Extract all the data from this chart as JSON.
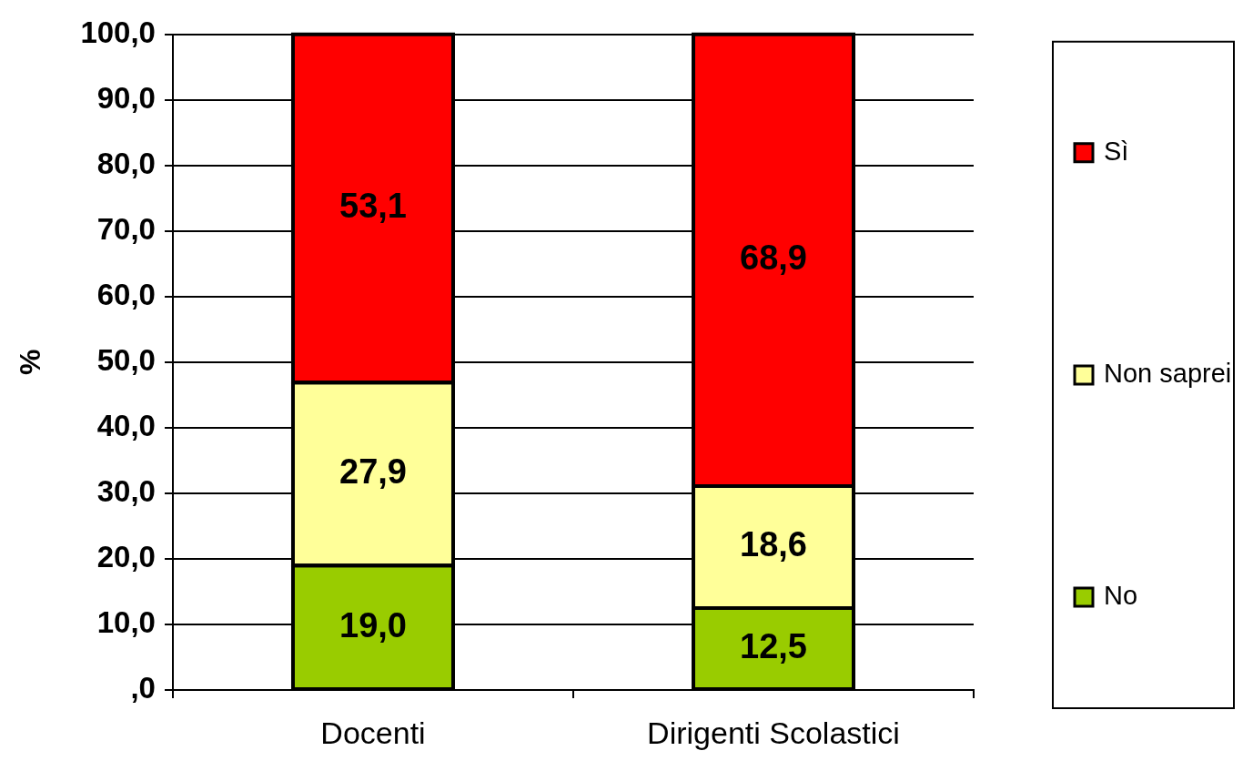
{
  "chart_data": {
    "type": "bar",
    "ylabel": "%",
    "categories": [
      "Docenti",
      "Dirigenti Scolastici"
    ],
    "series": [
      {
        "name": "No",
        "color": "#99cc00",
        "values": [
          19.0,
          12.5
        ],
        "value_labels": [
          "19,0",
          "12,5"
        ]
      },
      {
        "name": "Non saprei",
        "color": "#ffff99",
        "values": [
          27.9,
          18.6
        ],
        "value_labels": [
          "27,9",
          "18,6"
        ]
      },
      {
        "name": "Sì",
        "color": "#ff0000",
        "values": [
          53.1,
          68.9
        ],
        "value_labels": [
          "53,1",
          "68,9"
        ]
      }
    ],
    "stacked": true,
    "ylim": [
      0,
      100
    ],
    "yticks": [
      {
        "value": 0,
        "label": ",0"
      },
      {
        "value": 10,
        "label": "10,0"
      },
      {
        "value": 20,
        "label": "20,0"
      },
      {
        "value": 30,
        "label": "30,0"
      },
      {
        "value": 40,
        "label": "40,0"
      },
      {
        "value": 50,
        "label": "50,0"
      },
      {
        "value": 60,
        "label": "60,0"
      },
      {
        "value": 70,
        "label": "70,0"
      },
      {
        "value": 80,
        "label": "80,0"
      },
      {
        "value": 90,
        "label": "90,0"
      },
      {
        "value": 100,
        "label": "100,0"
      }
    ],
    "grid": "y",
    "legend": "right"
  }
}
